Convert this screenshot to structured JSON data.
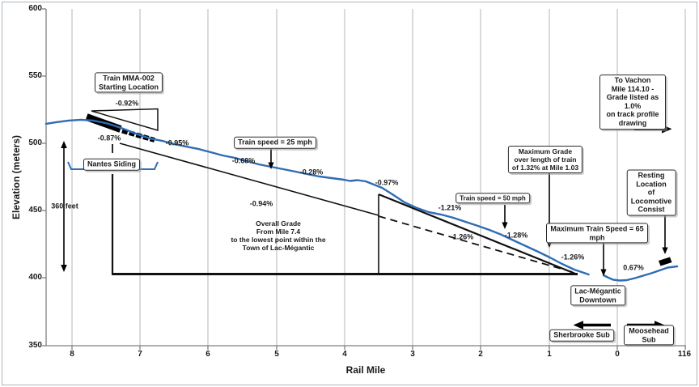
{
  "axes": {
    "y": {
      "label": "Elevation (meters)",
      "ticks": [
        "600",
        "550",
        "500",
        "450",
        "400",
        "350"
      ]
    },
    "x": {
      "label": "Rail Mile",
      "ticks": [
        "8",
        "7",
        "6",
        "5",
        "4",
        "3",
        "2",
        "1",
        "0",
        "116"
      ]
    }
  },
  "grades": {
    "g092": "-0.92%",
    "g087": "-0.87%",
    "g095": "-0.95%",
    "g068": "-0.68%",
    "g028": "-0.28%",
    "g097": "-0.97%",
    "g094": "-0.94%",
    "g121": "-1.21%",
    "g126_dashed": "-1.26%",
    "g128": "-1.28%",
    "g126_curve": "-1.26%",
    "g067": "0.67%"
  },
  "boxes": {
    "train_start": "Train MMA-002\nStarting Location",
    "nantes": "Nantes Siding",
    "speed25": "Train speed = 25 mph",
    "speed50": "Train speed = 50 mph",
    "max_grade": "Maximum Grade\nover length of train\nof 1.32% at Mile 1.03",
    "max_speed": "Maximum Train Speed = 65 mph",
    "vachon": "To Vachon\nMile 114.10 -\nGrade listed as 1.0%\non track profile drawing",
    "resting": "Resting Location\nof Locomotive\nConsist",
    "downtown": "Lac-Mégantic\nDowntown",
    "sherbrooke": "Sherbrooke Sub",
    "moosehead": "Moosehead Sub"
  },
  "labels": {
    "feet360": "360 feet",
    "overall": "Overall Grade\nFrom Mile 7.4\nto the lowest point within the\nTown of Lac-Mégantic"
  },
  "colors": {
    "profile_blue": "#2e6db4",
    "gridline": "#b5b5b5",
    "axis": "#7f7f7f",
    "ink": "#1a1a1a"
  },
  "chart_data": {
    "type": "line",
    "title": "",
    "xlabel": "Rail Mile",
    "ylabel": "Elevation (meters)",
    "x_axis_ticks": [
      "8",
      "7",
      "6",
      "5",
      "4",
      "3",
      "2",
      "1",
      "0",
      "116"
    ],
    "xlim_rail_mile": [
      8.4,
      -1.0
    ],
    "ylim": [
      350,
      600
    ],
    "grid": "vertical-only",
    "note_negative_miles": "negative x = past mile 0 onto Moosehead Sub (toward mile 116/114.10)",
    "series": [
      {
        "name": "profile-sherbrooke-sub",
        "x": [
          8.38,
          8.23,
          8.05,
          7.87,
          7.69,
          7.51,
          7.39,
          7.22,
          7.04,
          6.86,
          6.68,
          6.5,
          6.33,
          6.15,
          5.97,
          5.79,
          5.61,
          5.44,
          5.26,
          5.08,
          4.9,
          4.72,
          4.55,
          4.37,
          4.19,
          4.01,
          3.92,
          3.81,
          3.69,
          3.57,
          3.45,
          3.3,
          3.12,
          2.94,
          2.77,
          2.59,
          2.41,
          2.23,
          2.05,
          1.88,
          1.7,
          1.52,
          1.34,
          1.16,
          0.99,
          0.81,
          0.63,
          0.42
        ],
        "y": [
          514.7,
          515.9,
          517.1,
          517.7,
          517.1,
          515.3,
          513.5,
          510.5,
          506.9,
          503.9,
          502.1,
          499.7,
          497.9,
          496.1,
          493.7,
          491.2,
          489.4,
          487.0,
          484.6,
          482.8,
          481.0,
          479.2,
          477.4,
          475.6,
          474.4,
          473.2,
          472.3,
          472.9,
          472.0,
          469.6,
          467.2,
          462.4,
          456.4,
          452.2,
          449.2,
          447.4,
          445.0,
          442.0,
          439.0,
          436.0,
          432.4,
          428.1,
          423.9,
          419.7,
          415.5,
          410.7,
          406.5,
          402.9
        ]
      },
      {
        "name": "profile-moosehead-sub",
        "x": [
          0.2,
          0.13,
          0.06,
          -0.04,
          -0.14,
          -0.26,
          -0.38,
          -0.5,
          -0.62,
          -0.74,
          -0.88
        ],
        "y": [
          402.3,
          400.5,
          399.0,
          398.4,
          398.7,
          400.2,
          402.0,
          403.8,
          405.9,
          408.0,
          408.9
        ]
      }
    ],
    "segment_grades": [
      {
        "label": "-0.92%",
        "near_mile": 7.2
      },
      {
        "label": "-0.87%",
        "near_mile": 7.4
      },
      {
        "label": "-0.95%",
        "near_mile": 6.5
      },
      {
        "label": "-0.68%",
        "near_mile": 5.5
      },
      {
        "label": "-0.28%",
        "near_mile": 4.5
      },
      {
        "label": "-0.97%",
        "near_mile": 3.4
      },
      {
        "label": "-1.21%",
        "near_mile": 2.5
      },
      {
        "label": "-1.28%",
        "near_mile": 1.5
      },
      {
        "label": "-1.26%",
        "near_mile": 0.7
      },
      {
        "label": "0.67%",
        "near_mile": -0.3
      },
      {
        "label": "-0.94%",
        "meaning": "overall grade from Mile 7.4 to lowest point in Lac-Mégantic"
      },
      {
        "label": "-1.26%",
        "meaning": "average grade triangle from ~Mile 3.5 to ~Mile 0.6 (dashed reference)"
      }
    ],
    "key_annotations": [
      "Train MMA-002 Starting Location (~Mile 7.4)",
      "Nantes Siding (~Mile 8.0 to 6.8)",
      "Train speed = 25 mph (~Mile 5.1)",
      "Train speed = 50 mph (~Mile 1.65)",
      "Maximum Grade over length of train of 1.32% at Mile 1.03",
      "Maximum Train Speed = 65 mph (~Mile 0.2)",
      "Lac-Mégantic Downtown (Mile 0)",
      "Resting Location of Locomotive Consist (Moosehead Sub)",
      "To Vachon Mile 114.10 - Grade listed as 1.0% on track profile drawing",
      "360 feet total vertical drop",
      "Sherbrooke Sub (left of Mile 0) / Moosehead Sub (right of Mile 0)"
    ]
  }
}
